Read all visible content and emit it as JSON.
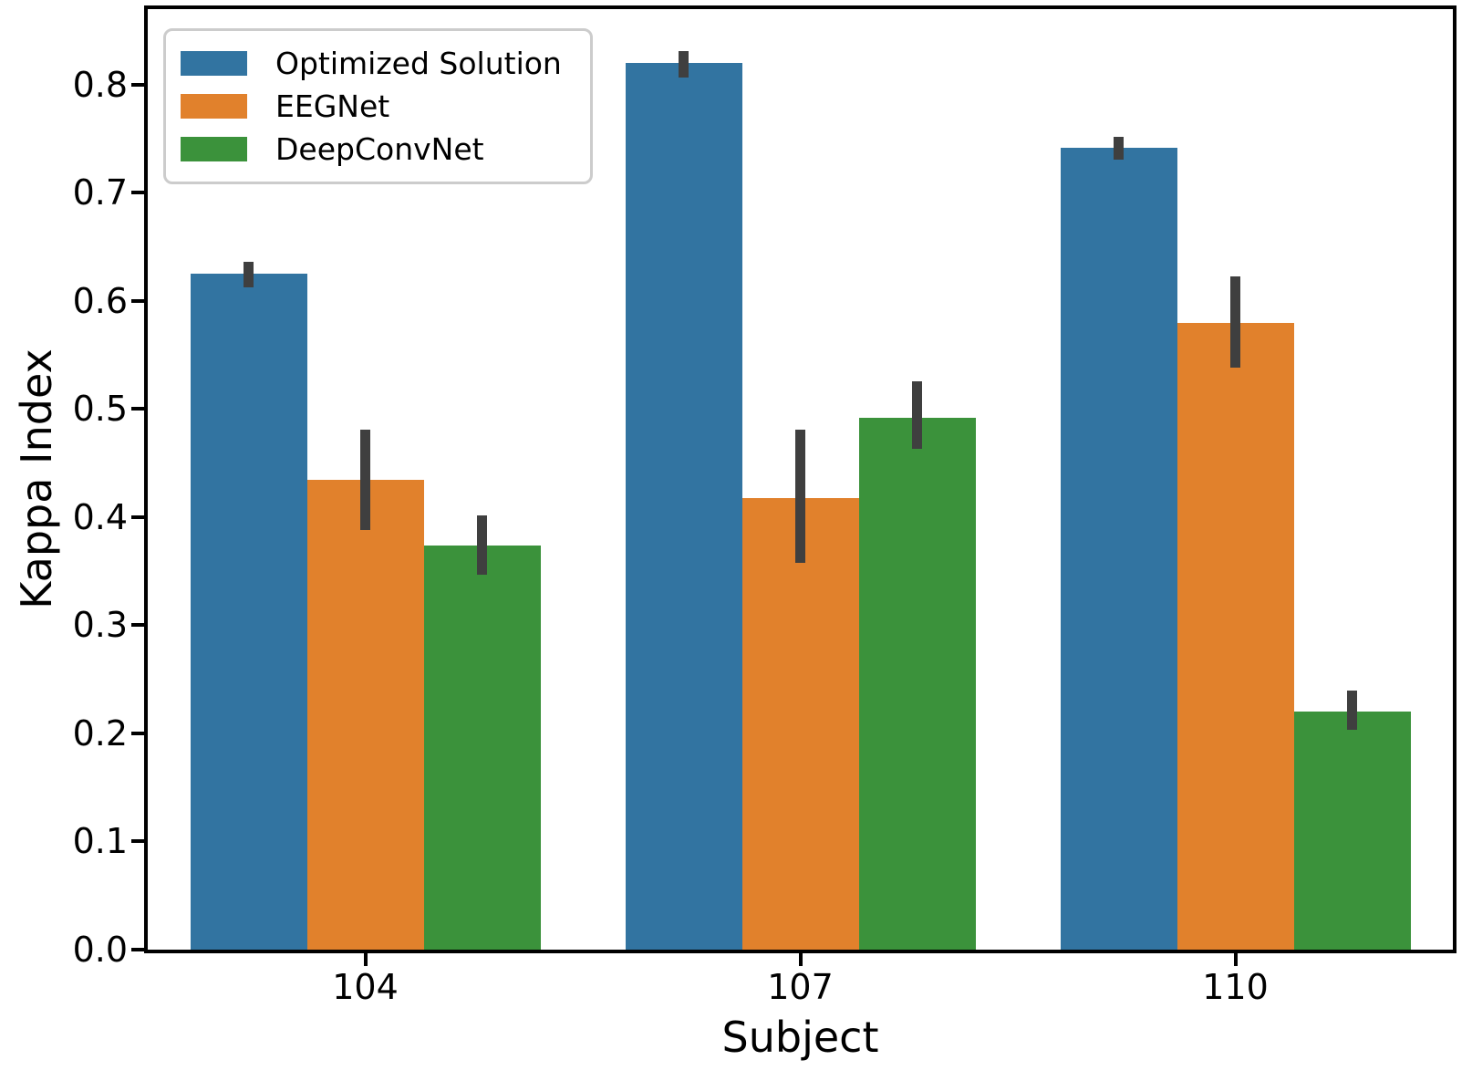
{
  "chart_data": {
    "type": "bar",
    "title": "",
    "xlabel": "Subject",
    "ylabel": "Kappa Index",
    "categories": [
      "104",
      "107",
      "110"
    ],
    "series": [
      {
        "name": "Optimized Solution",
        "color": "#3274A1",
        "values": [
          0.625,
          0.82,
          0.742
        ],
        "err_low": [
          0.613,
          0.807,
          0.731
        ],
        "err_high": [
          0.636,
          0.831,
          0.752
        ]
      },
      {
        "name": "EEGNet",
        "color": "#E1812C",
        "values": [
          0.435,
          0.418,
          0.58
        ],
        "err_low": [
          0.388,
          0.358,
          0.538
        ],
        "err_high": [
          0.481,
          0.481,
          0.623
        ]
      },
      {
        "name": "DeepConvNet",
        "color": "#3B923B",
        "values": [
          0.374,
          0.492,
          0.22
        ],
        "err_low": [
          0.347,
          0.463,
          0.203
        ],
        "err_high": [
          0.402,
          0.526,
          0.24
        ]
      }
    ],
    "ylim": [
      0,
      0.87
    ],
    "yticks": [
      "0.0",
      "0.1",
      "0.2",
      "0.3",
      "0.4",
      "0.5",
      "0.6",
      "0.7",
      "0.8"
    ],
    "grid": false,
    "legend_position": "upper-left",
    "error_bar_color": "#3F3F3F",
    "axis_color": "#000000"
  }
}
